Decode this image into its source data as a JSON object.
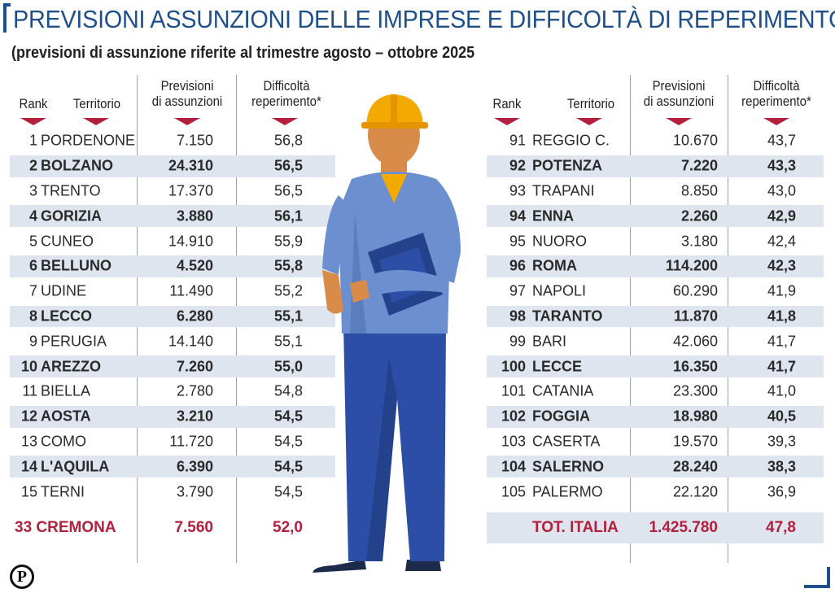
{
  "title": "PREVISIONI ASSUNZIONI DELLE IMPRESE E DIFFICOLTÀ DI REPERIMENTO",
  "subtitle": "(previsioni di assunzione riferite al trimestre agosto – ottobre 2025",
  "headers": {
    "rank": "Rank",
    "territorio": "Territorio",
    "previsioni_1": "Previsioni",
    "previsioni_2": "di assunzioni",
    "difficolta_1": "Difficoltà",
    "difficolta_2": "reperimento*"
  },
  "colors": {
    "title": "#1d4f8a",
    "accent": "#b2203d",
    "shade": "#dfe5ee",
    "worker_shirt": "#6b8fcf",
    "worker_pants": "#2d4ea6",
    "helmet": "#f2a900"
  },
  "icons": {
    "logo": "p-logo-icon",
    "worker": "worker-illustration-icon"
  },
  "left_rows": [
    {
      "rank": "1",
      "territorio": "PORDENONE",
      "previsioni": "7.150",
      "difficolta": "56,8"
    },
    {
      "rank": "2",
      "territorio": "BOLZANO",
      "previsioni": "24.310",
      "difficolta": "56,5"
    },
    {
      "rank": "3",
      "territorio": "TRENTO",
      "previsioni": "17.370",
      "difficolta": "56,5"
    },
    {
      "rank": "4",
      "territorio": "GORIZIA",
      "previsioni": "3.880",
      "difficolta": "56,1"
    },
    {
      "rank": "5",
      "territorio": "CUNEO",
      "previsioni": "14.910",
      "difficolta": "55,9"
    },
    {
      "rank": "6",
      "territorio": "BELLUNO",
      "previsioni": "4.520",
      "difficolta": "55,8"
    },
    {
      "rank": "7",
      "territorio": "UDINE",
      "previsioni": "11.490",
      "difficolta": "55,2"
    },
    {
      "rank": "8",
      "territorio": "LECCO",
      "previsioni": "6.280",
      "difficolta": "55,1"
    },
    {
      "rank": "9",
      "territorio": "PERUGIA",
      "previsioni": "14.140",
      "difficolta": "55,1"
    },
    {
      "rank": "10",
      "territorio": "AREZZO",
      "previsioni": "7.260",
      "difficolta": "55,0"
    },
    {
      "rank": "11",
      "territorio": "BIELLA",
      "previsioni": "2.780",
      "difficolta": "54,8"
    },
    {
      "rank": "12",
      "territorio": "AOSTA",
      "previsioni": "3.210",
      "difficolta": "54,5"
    },
    {
      "rank": "13",
      "territorio": "COMO",
      "previsioni": "11.720",
      "difficolta": "54,5"
    },
    {
      "rank": "14",
      "territorio": "L'AQUILA",
      "previsioni": "6.390",
      "difficolta": "54,5"
    },
    {
      "rank": "15",
      "territorio": "TERNI",
      "previsioni": "3.790",
      "difficolta": "54,5"
    }
  ],
  "left_total": {
    "label": "33 CREMONA",
    "previsioni": "7.560",
    "difficolta": "52,0"
  },
  "right_rows": [
    {
      "rank": "91",
      "territorio": "REGGIO C.",
      "previsioni": "10.670",
      "difficolta": "43,7"
    },
    {
      "rank": "92",
      "territorio": "POTENZA",
      "previsioni": "7.220",
      "difficolta": "43,3"
    },
    {
      "rank": "93",
      "territorio": "TRAPANI",
      "previsioni": "8.850",
      "difficolta": "43,0"
    },
    {
      "rank": "94",
      "territorio": "ENNA",
      "previsioni": "2.260",
      "difficolta": "42,9"
    },
    {
      "rank": "95",
      "territorio": "NUORO",
      "previsioni": "3.180",
      "difficolta": "42,4"
    },
    {
      "rank": "96",
      "territorio": "ROMA",
      "previsioni": "114.200",
      "difficolta": "42,3"
    },
    {
      "rank": "97",
      "territorio": "NAPOLI",
      "previsioni": "60.290",
      "difficolta": "41,9"
    },
    {
      "rank": "98",
      "territorio": "TARANTO",
      "previsioni": "11.870",
      "difficolta": "41,8"
    },
    {
      "rank": "99",
      "territorio": "BARI",
      "previsioni": "42.060",
      "difficolta": "41,7"
    },
    {
      "rank": "100",
      "territorio": "LECCE",
      "previsioni": "16.350",
      "difficolta": "41,7"
    },
    {
      "rank": "101",
      "territorio": "CATANIA",
      "previsioni": "23.300",
      "difficolta": "41,0"
    },
    {
      "rank": "102",
      "territorio": "FOGGIA",
      "previsioni": "18.980",
      "difficolta": "40,5"
    },
    {
      "rank": "103",
      "territorio": "CASERTA",
      "previsioni": "19.570",
      "difficolta": "39,3"
    },
    {
      "rank": "104",
      "territorio": "SALERNO",
      "previsioni": "28.240",
      "difficolta": "38,3"
    },
    {
      "rank": "105",
      "territorio": "PALERMO",
      "previsioni": "22.120",
      "difficolta": "36,9"
    }
  ],
  "right_total": {
    "label": "TOT. ITALIA",
    "previsioni": "1.425.780",
    "difficolta": "47,8"
  },
  "logo_letter": "P"
}
